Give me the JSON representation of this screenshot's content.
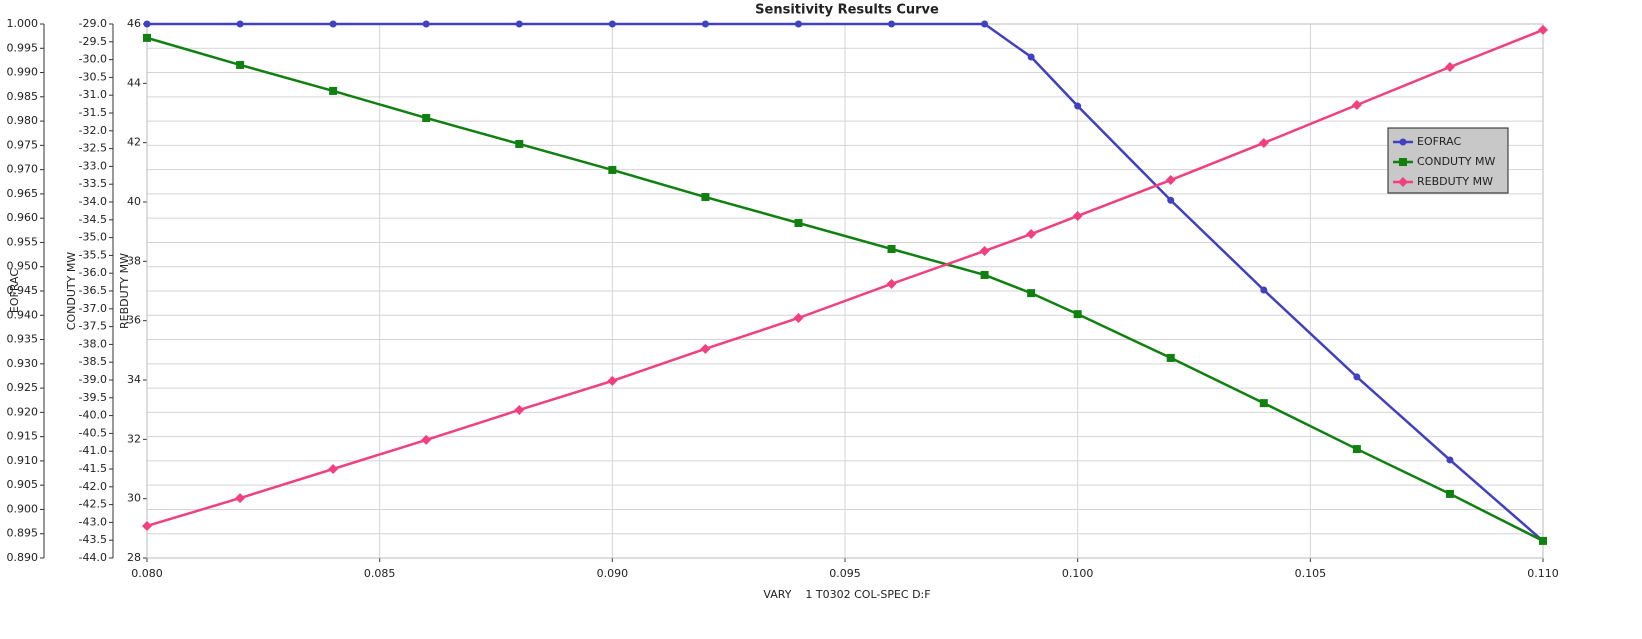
{
  "chart_data": {
    "type": "line",
    "title": "Sensitivity Results Curve",
    "xlabel": "VARY    1 T0302 COL-SPEC D:F",
    "ylabel": "EOFRAC",
    "y2label": "CONDUTY MW",
    "y3label": "REBDUTY MW",
    "grid": true,
    "x": [
      0.08,
      0.082,
      0.084,
      0.086,
      0.088,
      0.09,
      0.092,
      0.094,
      0.096,
      0.098,
      0.099,
      0.1,
      0.102,
      0.104,
      0.106,
      0.108,
      0.11
    ],
    "xlim": [
      0.08,
      0.11
    ],
    "xticks": [
      {
        "value": 0.08,
        "label": "0.080"
      },
      0.085,
      {
        "value": 0.09,
        "label": "0.090"
      },
      0.095,
      {
        "value": 0.1,
        "label": "0.100"
      },
      0.105,
      {
        "value": 0.11,
        "label": "0.110"
      }
    ],
    "ylim": [
      0.89,
      1.0
    ],
    "yticks": [
      {
        "value": 0.89,
        "label": "0.890"
      },
      0.895,
      {
        "value": 0.9,
        "label": "0.900"
      },
      0.905,
      {
        "value": 0.91,
        "label": "0.910"
      },
      0.915,
      {
        "value": 0.92,
        "label": "0.920"
      },
      0.925,
      {
        "value": 0.93,
        "label": "0.930"
      },
      0.935,
      {
        "value": 0.94,
        "label": "0.940"
      },
      0.945,
      {
        "value": 0.95,
        "label": "0.950"
      },
      0.955,
      {
        "value": 0.96,
        "label": "0.960"
      },
      0.965,
      {
        "value": 0.97,
        "label": "0.970"
      },
      0.975,
      {
        "value": 0.98,
        "label": "0.980"
      },
      0.985,
      {
        "value": 0.99,
        "label": "0.990"
      },
      0.995,
      {
        "value": 1.0,
        "label": "1.000"
      }
    ],
    "y2lim": [
      -44.0,
      -29.0
    ],
    "y2ticks": [
      {
        "value": -44,
        "label": "-44.0"
      },
      -43.5,
      {
        "value": -43,
        "label": "-43.0"
      },
      -42.5,
      {
        "value": -42,
        "label": "-42.0"
      },
      -41.5,
      {
        "value": -41,
        "label": "-41.0"
      },
      -40.5,
      {
        "value": -40,
        "label": "-40.0"
      },
      -39.5,
      {
        "value": -39,
        "label": "-39.0"
      },
      -38.5,
      {
        "value": -38,
        "label": "-38.0"
      },
      -37.5,
      {
        "value": -37,
        "label": "-37.0"
      },
      -36.5,
      {
        "value": -36,
        "label": "-36.0"
      },
      -35.5,
      {
        "value": -35,
        "label": "-35.0"
      },
      -34.5,
      {
        "value": -34,
        "label": "-34.0"
      },
      -33.5,
      {
        "value": -33,
        "label": "-33.0"
      },
      -32.5,
      {
        "value": -32,
        "label": "-32.0"
      },
      -31.5,
      {
        "value": -31,
        "label": "-31.0"
      },
      -30.5,
      {
        "value": -30,
        "label": "-30.0"
      },
      -29.5,
      {
        "value": -29,
        "label": "-29.0"
      }
    ],
    "y3lim": [
      28,
      46
    ],
    "y3ticks": [
      28,
      30,
      32,
      34,
      36,
      38,
      40,
      42,
      44,
      46
    ],
    "series": [
      {
        "name": "EOFRAC",
        "color": "#4040c0",
        "marker": "circle",
        "axis": "y",
        "values": [
          1.0,
          1.0,
          1.0,
          1.0,
          1.0,
          1.0,
          1.0,
          1.0,
          1.0,
          1.0,
          0.9932,
          0.9831,
          0.9637,
          0.9452,
          0.9273,
          0.9102,
          0.8935
        ]
      },
      {
        "name": "CONDUTY MW",
        "color": "#108010",
        "marker": "square",
        "axis": "y2",
        "values": [
          -29.39,
          -30.15,
          -30.88,
          -31.64,
          -32.37,
          -33.1,
          -33.86,
          -34.59,
          -35.32,
          -36.05,
          -36.56,
          -37.15,
          -38.38,
          -39.65,
          -40.94,
          -42.2,
          -43.52
        ]
      },
      {
        "name": "REBDUTY MW",
        "color": "#f04080",
        "marker": "diamond",
        "axis": "y3",
        "values": [
          29.08,
          30.02,
          31.0,
          31.98,
          32.99,
          33.97,
          35.05,
          36.09,
          37.24,
          38.35,
          38.92,
          39.53,
          40.74,
          41.99,
          43.27,
          44.55,
          45.8
        ]
      }
    ]
  }
}
